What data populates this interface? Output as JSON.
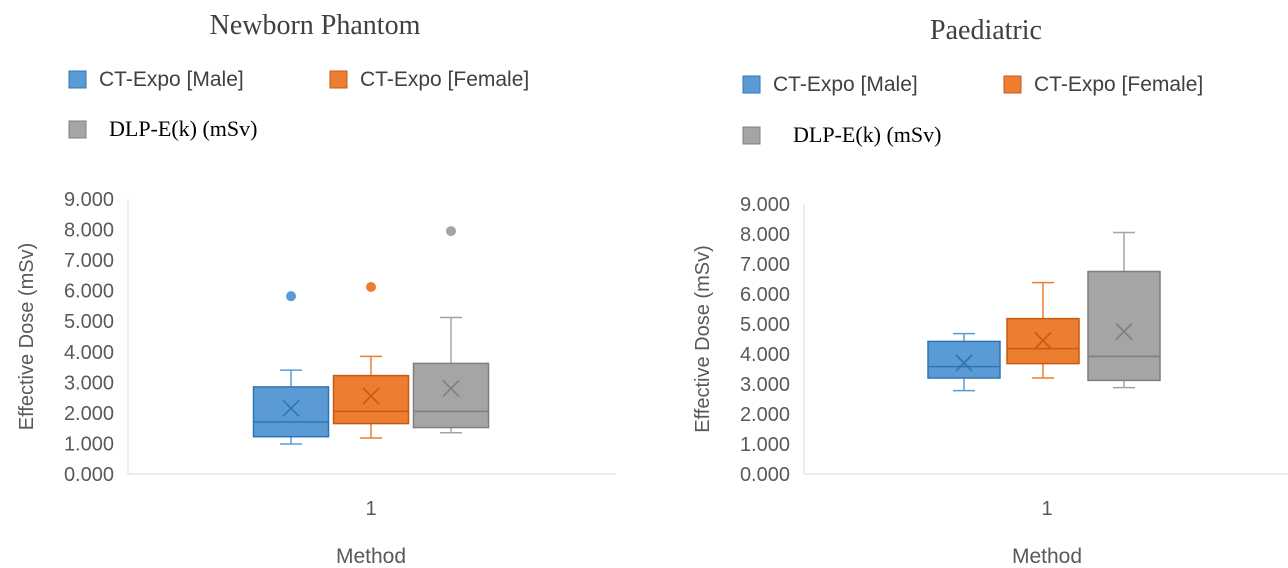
{
  "chart_data": [
    {
      "type": "box",
      "title": "Newborn Phantom",
      "xlabel": "Method",
      "ylabel": "Effective Dose (mSv)",
      "ylim": [
        0,
        9
      ],
      "yticks": [
        "0.000",
        "1.000",
        "2.000",
        "3.000",
        "4.000",
        "5.000",
        "6.000",
        "7.000",
        "8.000",
        "9.000"
      ],
      "categories": [
        "1"
      ],
      "grid": false,
      "legend_position": "top",
      "series": [
        {
          "name": "CT-Expo [Male]",
          "color": "#5b9bd5",
          "stroke": "#2e75b6",
          "min": 0.98,
          "q1": 1.22,
          "median": 1.7,
          "q3": 2.85,
          "max": 3.4,
          "mean": 2.15,
          "outliers": [
            5.82
          ]
        },
        {
          "name": "CT-Expo [Female]",
          "color": "#ed7d31",
          "stroke": "#c55a11",
          "min": 1.18,
          "q1": 1.65,
          "median": 2.05,
          "q3": 3.22,
          "max": 3.85,
          "mean": 2.55,
          "outliers": [
            6.12
          ]
        },
        {
          "name": "DLP-E(k) (mSv)",
          "color": "#a5a5a5",
          "stroke": "#7f7f7f",
          "min": 1.35,
          "q1": 1.52,
          "median": 2.05,
          "q3": 3.62,
          "max": 5.12,
          "mean": 2.8,
          "outliers": [
            7.95
          ]
        }
      ]
    },
    {
      "type": "box",
      "title": "Paediatric",
      "xlabel": "Method",
      "ylabel": "Effective Dose (mSv)",
      "ylim": [
        0,
        9
      ],
      "yticks": [
        "0.000",
        "1.000",
        "2.000",
        "3.000",
        "4.000",
        "5.000",
        "6.000",
        "7.000",
        "8.000",
        "9.000"
      ],
      "categories": [
        "1"
      ],
      "grid": false,
      "legend_position": "top",
      "series": [
        {
          "name": "CT-Expo [Male]",
          "color": "#5b9bd5",
          "stroke": "#2e75b6",
          "min": 2.78,
          "q1": 3.2,
          "median": 3.58,
          "q3": 4.42,
          "max": 4.68,
          "mean": 3.7,
          "outliers": []
        },
        {
          "name": "CT-Expo [Female]",
          "color": "#ed7d31",
          "stroke": "#c55a11",
          "min": 3.2,
          "q1": 3.68,
          "median": 4.18,
          "q3": 5.18,
          "max": 6.38,
          "mean": 4.45,
          "outliers": []
        },
        {
          "name": "DLP-E(k) (mSv)",
          "color": "#a5a5a5",
          "stroke": "#7f7f7f",
          "min": 2.88,
          "q1": 3.12,
          "median": 3.92,
          "q3": 6.75,
          "max": 8.05,
          "mean": 4.75,
          "outliers": []
        }
      ]
    }
  ]
}
